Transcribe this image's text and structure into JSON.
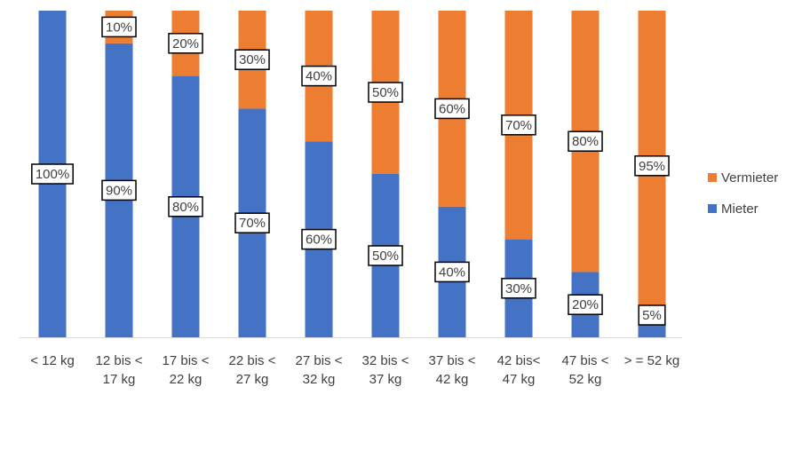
{
  "chart_data": {
    "type": "stacked_bar",
    "categories": [
      "< 12 kg",
      "12 bis <\n17 kg",
      "17 bis <\n22 kg",
      "22 bis <\n27 kg",
      "27 bis <\n32 kg",
      "32 bis <\n37 kg",
      "37 bis <\n42 kg",
      "42 bis<\n47 kg",
      "47 bis <\n52 kg",
      "> = 52 kg"
    ],
    "series": [
      {
        "name": "Mieter",
        "color": "#4472c4",
        "values": [
          100,
          90,
          80,
          70,
          60,
          50,
          40,
          30,
          20,
          5
        ],
        "value_labels": [
          "100%",
          "90%",
          "80%",
          "70%",
          "60%",
          "50%",
          "40%",
          "30%",
          "20%",
          "5%"
        ]
      },
      {
        "name": "Vermieter",
        "color": "#ed7d31",
        "values": [
          0,
          10,
          20,
          30,
          40,
          50,
          60,
          70,
          80,
          95
        ],
        "value_labels": [
          null,
          "10%",
          "20%",
          "30%",
          "40%",
          "50%",
          "60%",
          "70%",
          "80%",
          "95%"
        ]
      }
    ],
    "ylim": [
      0,
      100
    ]
  }
}
